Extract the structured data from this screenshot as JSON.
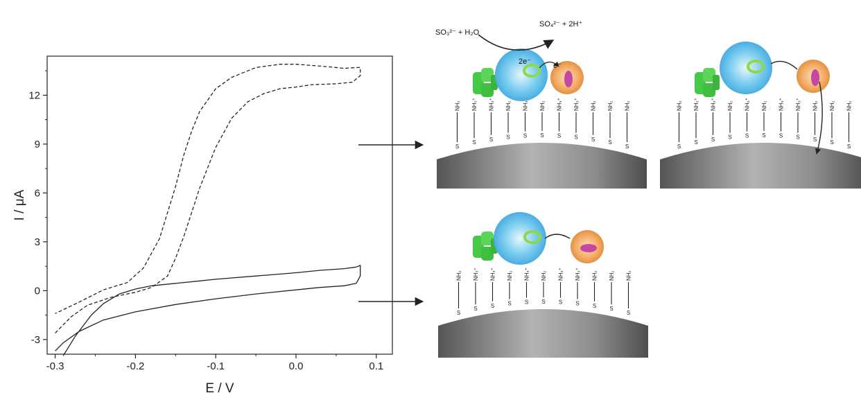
{
  "chart_data": {
    "type": "line",
    "xlabel": "E / V",
    "ylabel": "I / μA",
    "xlim": [
      -0.31,
      0.12
    ],
    "ylim": [
      -3.9,
      14.4
    ],
    "xticks": [
      -0.3,
      -0.2,
      -0.1,
      0.0,
      0.1
    ],
    "xtick_labels": [
      "-0.3",
      "-0.2",
      "-0.1",
      "0.0",
      "0.1"
    ],
    "yticks": [
      -3,
      0,
      3,
      6,
      9,
      12
    ],
    "ytick_labels": [
      "-3",
      "0",
      "3",
      "6",
      "9",
      "12"
    ],
    "grid": false,
    "series": [
      {
        "style": "solid",
        "x": [
          -0.29,
          -0.275,
          -0.255,
          -0.24,
          -0.22,
          -0.2,
          -0.18,
          -0.15,
          -0.12,
          -0.1,
          -0.05,
          0.0,
          0.03,
          0.06,
          0.075,
          0.08,
          0.08,
          0.075,
          0.06,
          0.03,
          0.0,
          -0.05,
          -0.1,
          -0.15,
          -0.2,
          -0.24,
          -0.27,
          -0.29,
          -0.3
        ],
        "y": [
          -4.0,
          -2.8,
          -1.5,
          -0.8,
          -0.2,
          0.1,
          0.3,
          0.45,
          0.6,
          0.7,
          0.9,
          1.1,
          1.25,
          1.35,
          1.45,
          1.55,
          0.9,
          0.45,
          0.3,
          0.2,
          0.05,
          -0.2,
          -0.5,
          -0.85,
          -1.3,
          -1.8,
          -2.5,
          -3.2,
          -3.7
        ]
      },
      {
        "style": "dashed",
        "x": [
          -0.3,
          -0.28,
          -0.26,
          -0.23,
          -0.2,
          -0.18,
          -0.16,
          -0.15,
          -0.14,
          -0.13,
          -0.12,
          -0.1,
          -0.08,
          -0.06,
          -0.04,
          -0.02,
          0.0,
          0.02,
          0.05,
          0.07,
          0.08,
          0.08,
          0.075,
          0.06,
          0.04,
          0.0,
          -0.02,
          -0.05,
          -0.08,
          -0.1,
          -0.12,
          -0.13,
          -0.14,
          -0.15,
          -0.17,
          -0.19,
          -0.21,
          -0.24,
          -0.27,
          -0.3
        ],
        "y": [
          -2.6,
          -1.6,
          -0.9,
          -0.4,
          -0.1,
          0.2,
          0.9,
          2.0,
          3.3,
          4.8,
          6.3,
          8.8,
          10.6,
          11.6,
          12.1,
          12.4,
          12.5,
          12.65,
          12.7,
          12.8,
          13.2,
          13.7,
          13.7,
          13.65,
          13.75,
          13.9,
          13.9,
          13.7,
          13.1,
          12.4,
          11.0,
          9.8,
          8.3,
          6.4,
          3.2,
          1.4,
          0.5,
          0.05,
          -0.7,
          -1.4
        ]
      }
    ]
  },
  "schematic": {
    "reaction_reactants": "SO₃²⁻ + H₂O",
    "reaction_products": "SO₄²⁻ + 2H⁺",
    "electron_label_2e": "2e⁻",
    "electron_label_e": "e⁻",
    "group_labels": [
      "NH₂",
      "NH₃⁺",
      "NH₃⁺",
      "NH₂",
      "NH₃⁺",
      "NH₂",
      "NH₃⁺",
      "NH₃⁺",
      "NH₂",
      "NH₂",
      "NH₂"
    ],
    "thiol_label": "S",
    "colors": {
      "protein_blue": "#5fc2ec",
      "protein_orange": "#f2a55e",
      "antibody_green": "#4fcf4f",
      "heme_green": "#7ed957",
      "heme_magenta": "#c447a3",
      "electrode_gray": "#8a8a8a"
    }
  }
}
